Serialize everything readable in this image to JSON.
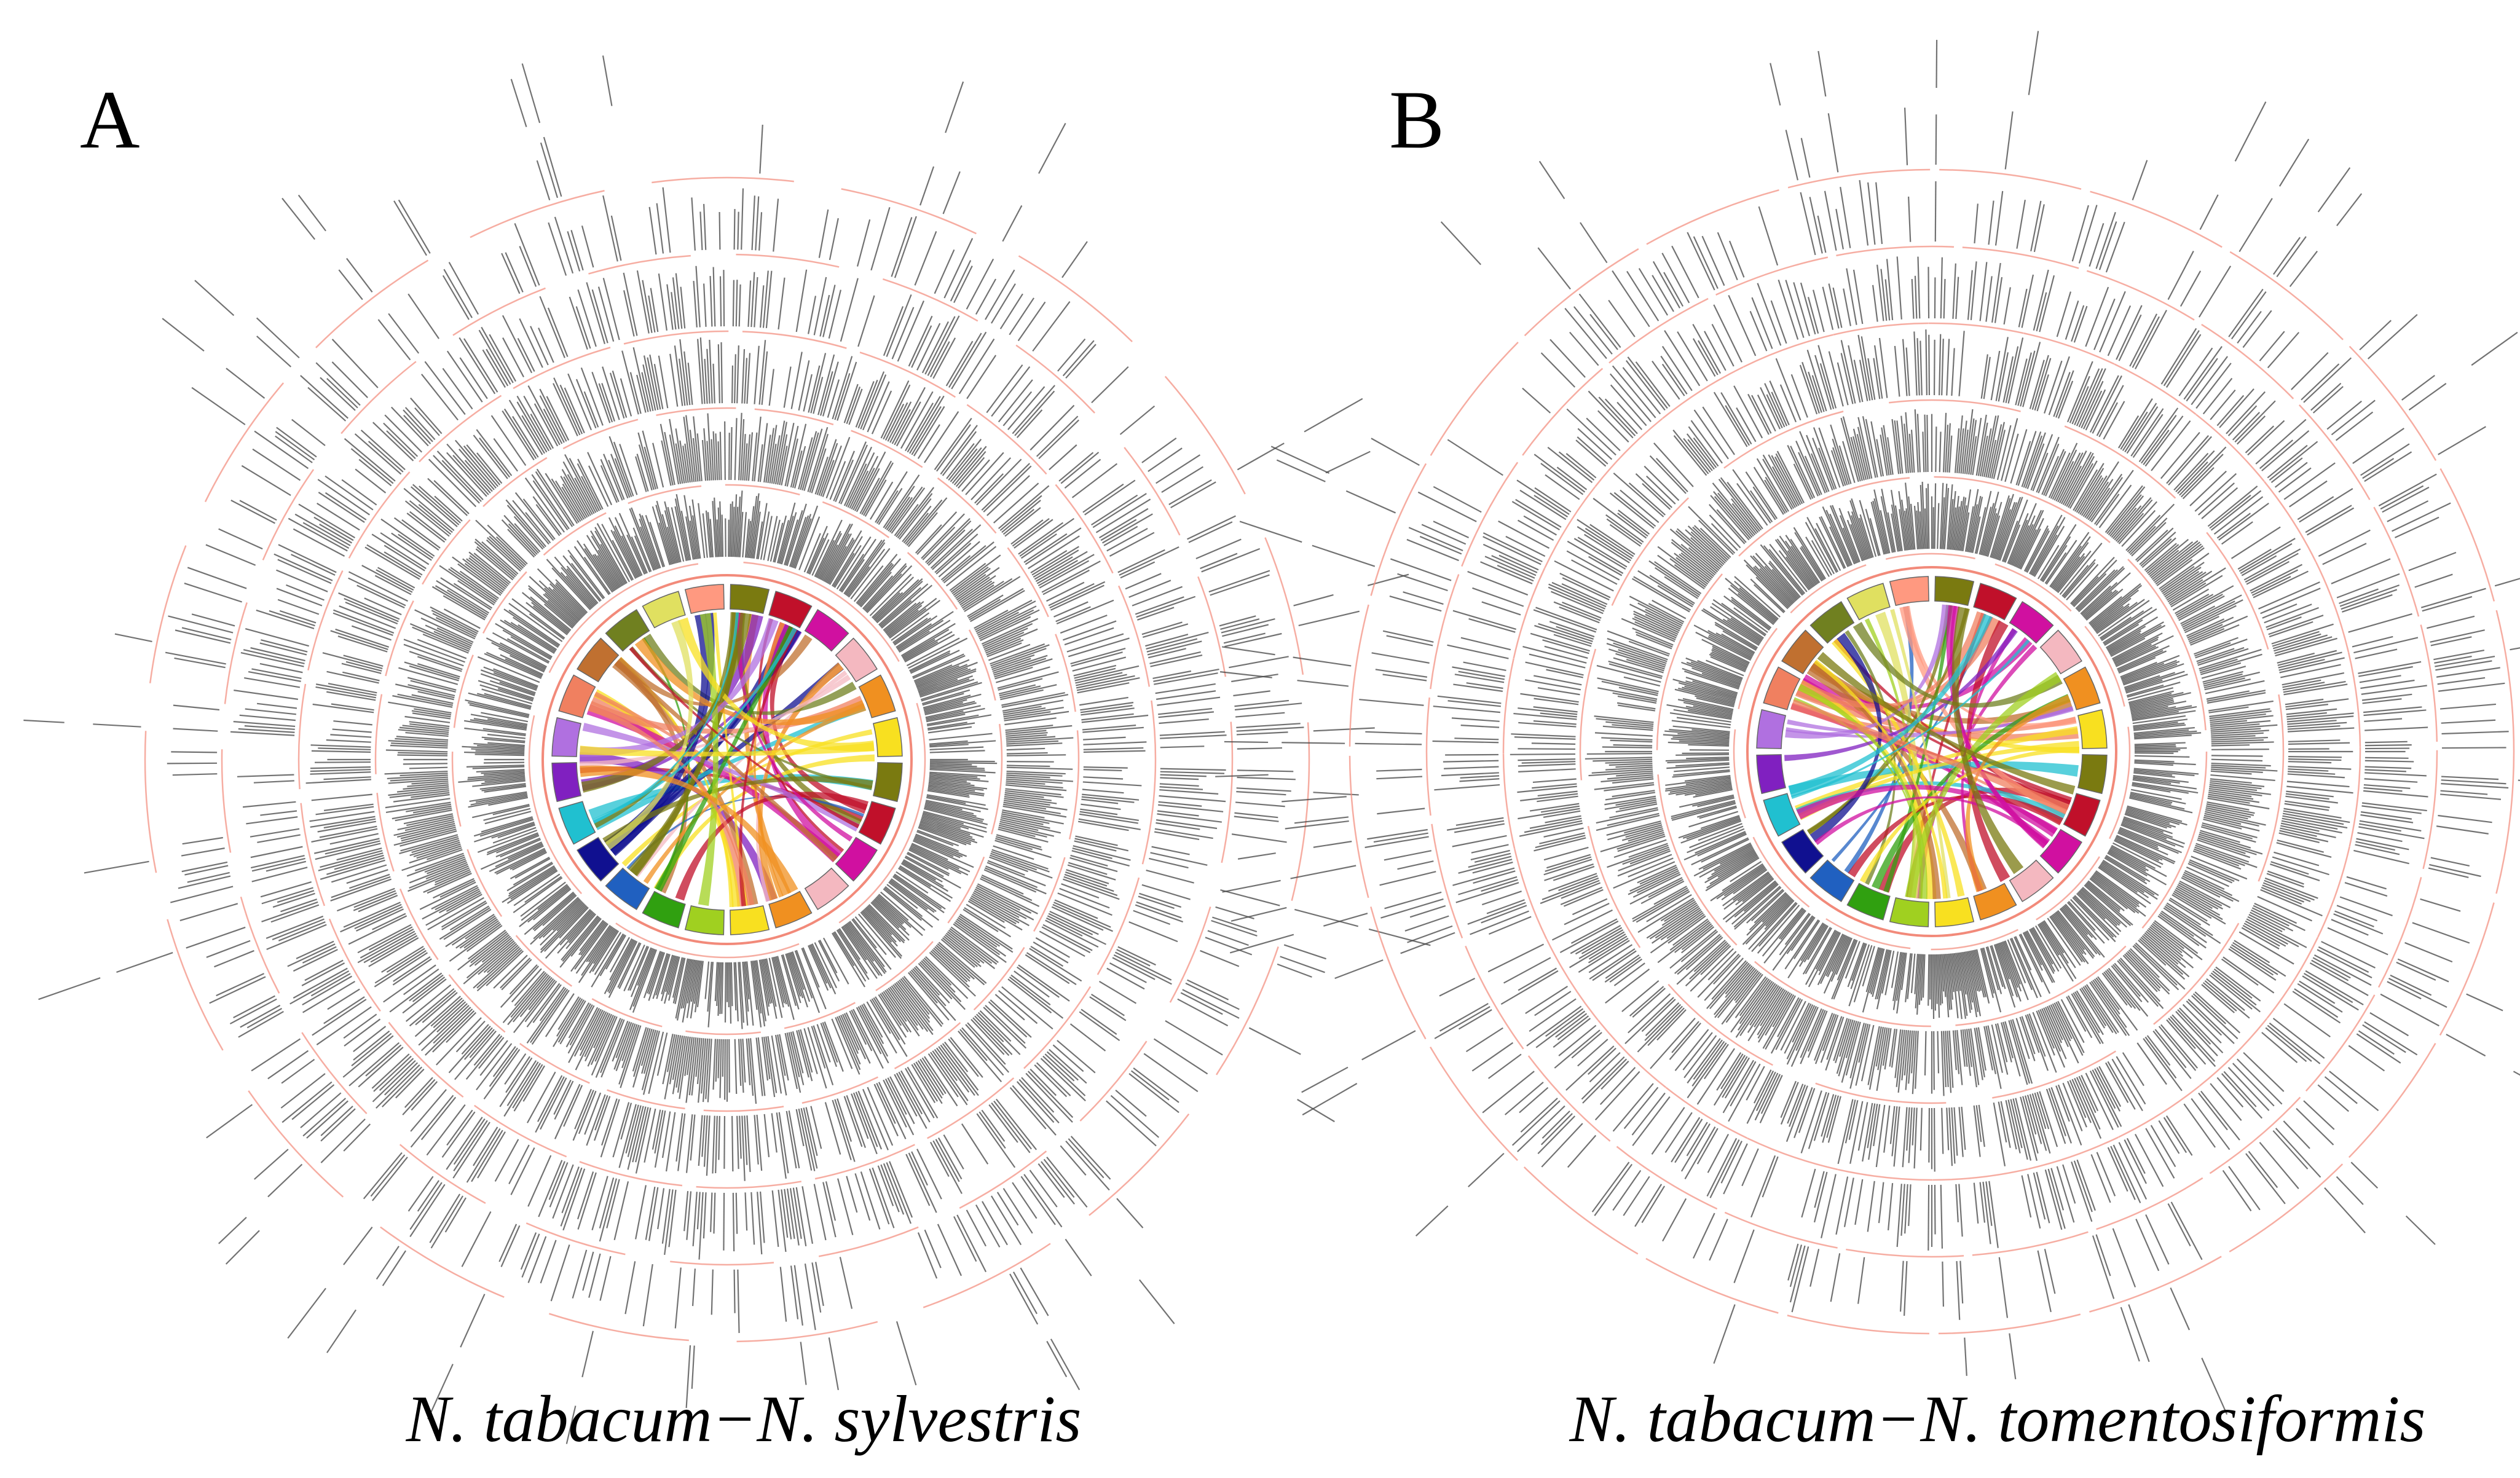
{
  "panels": [
    {
      "label": "A",
      "caption": "N. tabacum−N. sylvestris"
    },
    {
      "label": "B",
      "caption": "N. tabacum−N. tomentosiformis"
    }
  ]
}
